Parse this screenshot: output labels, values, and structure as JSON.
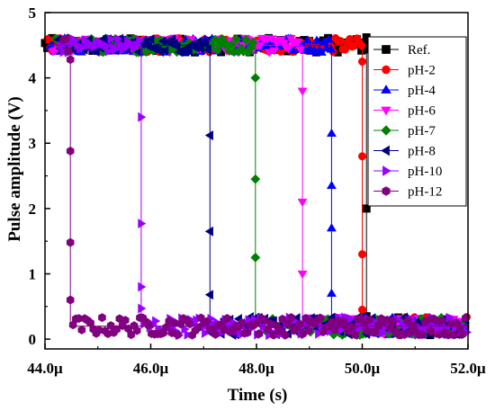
{
  "chart_data": {
    "type": "scatter",
    "title": "",
    "xlabel": "Time (s)",
    "ylabel": "Pulse amplitude (V)",
    "xlim": [
      44.0,
      52.0
    ],
    "ylim": [
      -0.15,
      5.0
    ],
    "x_unit_suffix": "μ",
    "x_ticks": [
      44.0,
      46.0,
      48.0,
      50.0,
      52.0
    ],
    "x_tick_labels": [
      "44.0μ",
      "46.0μ",
      "48.0μ",
      "50.0μ",
      "52.0μ"
    ],
    "y_ticks": [
      0,
      1,
      2,
      3,
      4,
      5
    ],
    "y_tick_labels": [
      "0",
      "1",
      "2",
      "3",
      "4",
      "5"
    ],
    "grid": false,
    "legend_position": "right",
    "high_level": 4.5,
    "low_level": 0.2,
    "series": [
      {
        "name": "Ref.",
        "color": "#000000",
        "marker": "square",
        "fall_time": 50.08,
        "transition_y": [
          4.62,
          2.0,
          0.35
        ]
      },
      {
        "name": "pH-2",
        "color": "#ff0000",
        "marker": "circle",
        "fall_time": 50.0,
        "transition_y": [
          4.25,
          2.8,
          1.3,
          0.45
        ]
      },
      {
        "name": "pH-4",
        "color": "#0000ff",
        "marker": "triangle-up",
        "fall_time": 49.42,
        "transition_y": [
          3.15,
          2.35,
          1.7,
          0.7
        ]
      },
      {
        "name": "pH-6",
        "color": "#ff00ff",
        "marker": "triangle-down",
        "fall_time": 48.87,
        "transition_y": [
          3.8,
          2.1,
          1.0
        ]
      },
      {
        "name": "pH-7",
        "color": "#008000",
        "marker": "diamond",
        "fall_time": 47.98,
        "transition_y": [
          4.0,
          2.45,
          1.25
        ]
      },
      {
        "name": "pH-8",
        "color": "#000080",
        "marker": "triangle-left",
        "fall_time": 47.12,
        "transition_y": [
          3.12,
          1.65,
          0.68
        ]
      },
      {
        "name": "pH-10",
        "color": "#9900ff",
        "marker": "triangle-right",
        "fall_time": 45.82,
        "transition_y": [
          3.4,
          1.77,
          0.8,
          0.47
        ]
      },
      {
        "name": "pH-12",
        "color": "#800080",
        "marker": "hexagon",
        "fall_time": 44.48,
        "transition_y": [
          4.28,
          2.88,
          1.48,
          0.6
        ]
      }
    ]
  }
}
